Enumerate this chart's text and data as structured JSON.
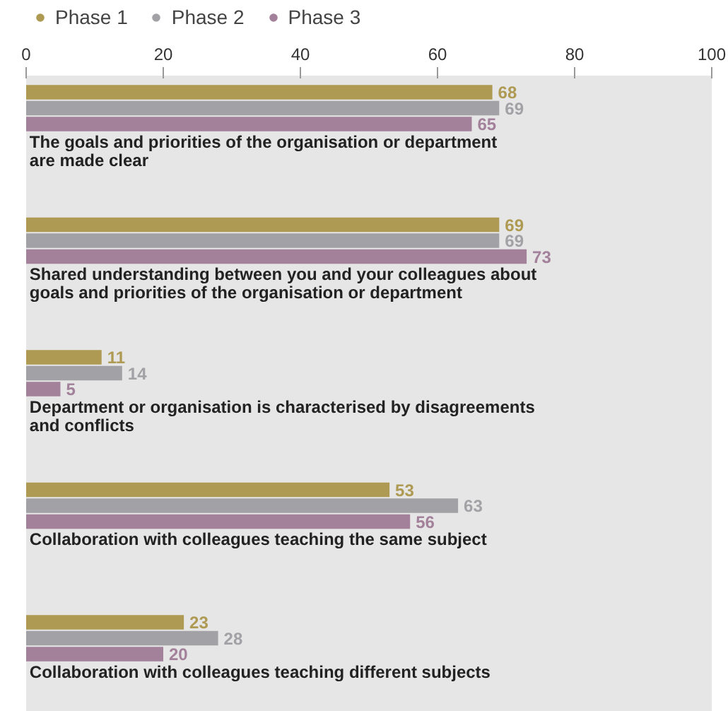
{
  "chart_data": {
    "type": "bar",
    "orientation": "horizontal",
    "categories": [
      "The goals and priorities of the organisation or department are made clear",
      "Shared understanding between you and your colleagues about goals and priorities of the organisation or department",
      "Department or organisation is characterised by disagreements and conflicts",
      "Collaboration with colleagues teaching the same subject",
      "Collaboration with colleagues teaching different subjects"
    ],
    "series": [
      {
        "name": "Phase 1",
        "color": "#ae9a52",
        "values": [
          68,
          69,
          11,
          53,
          23
        ]
      },
      {
        "name": "Phase 2",
        "color": "#a2a2a6",
        "values": [
          69,
          69,
          14,
          63,
          28
        ]
      },
      {
        "name": "Phase 3",
        "color": "#a3819b",
        "values": [
          65,
          73,
          5,
          56,
          20
        ]
      }
    ],
    "xlim": [
      0,
      100
    ],
    "xticks": [
      0,
      20,
      40,
      60,
      80,
      100
    ],
    "grid": false,
    "legend": "top left",
    "data_labels": true
  }
}
